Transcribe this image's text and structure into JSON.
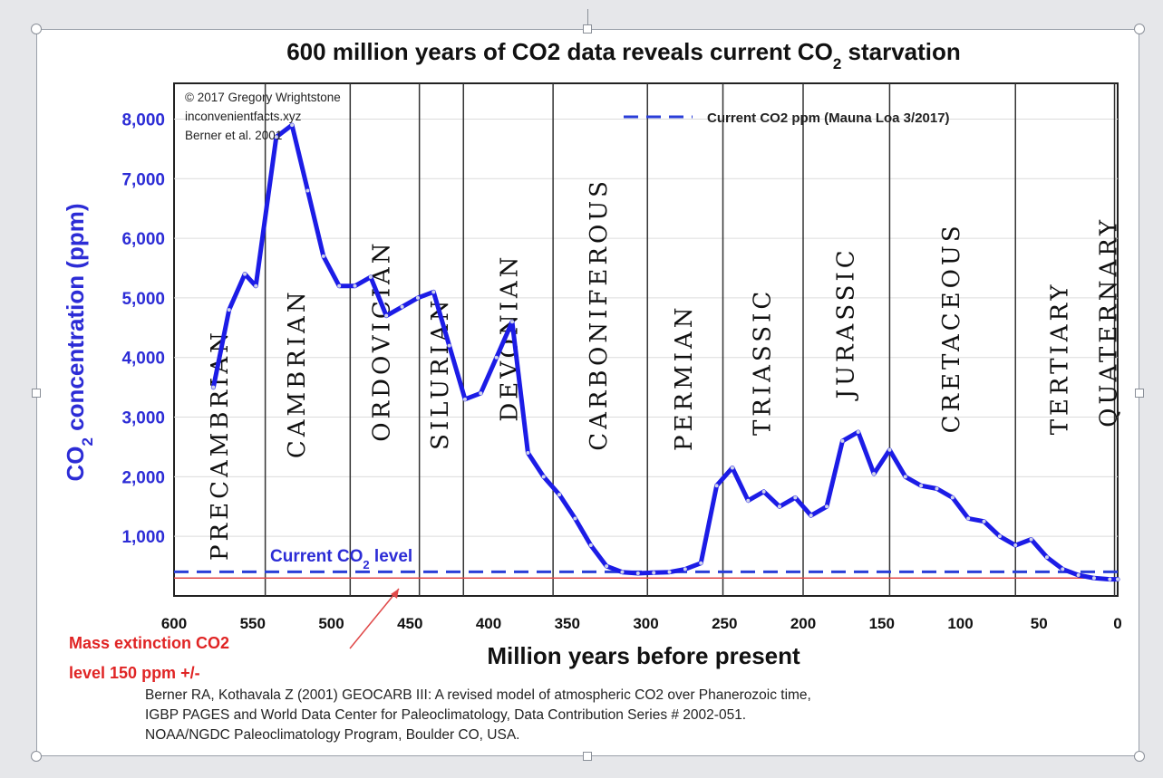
{
  "chart_data": {
    "type": "line",
    "title": "600 million years of CO2 data reveals current CO",
    "title_sub": "2",
    "title_end": " starvation",
    "source_lines": [
      "© 2017 Gregory Wrightstone",
      "inconvenientfacts.xyz",
      "Berner et al. 2001"
    ],
    "legend": {
      "label": "Current CO2 ppm (Mauna Loa 3/2017)",
      "placement": "top-right"
    },
    "ylabel": {
      "pre": "CO",
      "sub": "2",
      "post": " concentration (ppm)"
    },
    "xlabel": "Million years before present",
    "xlim": [
      600,
      0
    ],
    "ylim": [
      0,
      8600
    ],
    "x_ticks": [
      {
        "value": 600,
        "label": "600"
      },
      {
        "value": 550,
        "label": "550"
      },
      {
        "value": 500,
        "label": "500"
      },
      {
        "value": 450,
        "label": "450"
      },
      {
        "value": 400,
        "label": "400"
      },
      {
        "value": 350,
        "label": "350"
      },
      {
        "value": 300,
        "label": "300"
      },
      {
        "value": 250,
        "label": "250"
      },
      {
        "value": 200,
        "label": "200"
      },
      {
        "value": 150,
        "label": "150"
      },
      {
        "value": 100,
        "label": "100"
      },
      {
        "value": 50,
        "label": "50"
      },
      {
        "value": 0,
        "label": "0"
      }
    ],
    "y_ticks": [
      {
        "value": 1000,
        "label": "1,000"
      },
      {
        "value": 2000,
        "label": "2,000"
      },
      {
        "value": 3000,
        "label": "3,000"
      },
      {
        "value": 4000,
        "label": "4,000"
      },
      {
        "value": 5000,
        "label": "5,000"
      },
      {
        "value": 6000,
        "label": "6,000"
      },
      {
        "value": 7000,
        "label": "7,000"
      },
      {
        "value": 8000,
        "label": "8,000"
      }
    ],
    "period_boundaries": [
      542,
      488,
      444,
      416,
      359,
      299,
      251,
      200,
      145,
      65,
      2
    ],
    "periods": [
      {
        "name": "PRECAMBRIAN",
        "x": 570,
        "y_top": 4480
      },
      {
        "name": "CAMBRIAN",
        "x": 521,
        "y_top": 5160
      },
      {
        "name": "ORDOVICIAN",
        "x": 467,
        "y_top": 5980
      },
      {
        "name": "SILURIAN",
        "x": 430,
        "y_top": 5020
      },
      {
        "name": "DEVONIAN",
        "x": 386,
        "y_top": 5750
      },
      {
        "name": "CARBONIFEROUS",
        "x": 329,
        "y_top": 7020
      },
      {
        "name": "PERMIAN",
        "x": 275,
        "y_top": 4900
      },
      {
        "name": "TRIASSIC",
        "x": 225,
        "y_top": 5170
      },
      {
        "name": "JURASSIC",
        "x": 172,
        "y_top": 5860
      },
      {
        "name": "CRETACEOUS",
        "x": 105,
        "y_top": 6270
      },
      {
        "name": "TERTIARY",
        "x": 36,
        "y_top": 5280
      },
      {
        "name": "QUATERNARY",
        "x": 5,
        "y_top": 6370
      }
    ],
    "series": [
      {
        "x": [
          575,
          565,
          555,
          548,
          535,
          525,
          515,
          505,
          495,
          485,
          475,
          465,
          455,
          445,
          435,
          425,
          415,
          405,
          395,
          385,
          375,
          365,
          355,
          345,
          335,
          325,
          315,
          305,
          295,
          285,
          275,
          265,
          255,
          245,
          235,
          225,
          215,
          205,
          195,
          185,
          175,
          165,
          155,
          145,
          135,
          125,
          115,
          105,
          95,
          85,
          75,
          65,
          55,
          45,
          35,
          25,
          15,
          5,
          0
        ],
        "values": [
          3500,
          4800,
          5400,
          5200,
          7700,
          7900,
          6800,
          5700,
          5200,
          5200,
          5350,
          4700,
          4850,
          5000,
          5100,
          4200,
          3300,
          3400,
          4000,
          4600,
          2400,
          2000,
          1700,
          1300,
          850,
          500,
          400,
          380,
          390,
          400,
          450,
          550,
          1850,
          2150,
          1600,
          1750,
          1500,
          1650,
          1350,
          1500,
          2600,
          2750,
          2050,
          2450,
          2000,
          1850,
          1800,
          1650,
          1300,
          1250,
          1000,
          850,
          950,
          650,
          450,
          350,
          300,
          280,
          280
        ]
      }
    ],
    "current_co2_ppm": 405,
    "current_label_pre": "Current CO",
    "current_label_sub": "2",
    "current_label_post": " level",
    "mass_extinction_ppm": 150,
    "mass_extinction_lines": [
      "Mass extinction CO2",
      "level 150 ppm +/-"
    ],
    "citation_lines": [
      "Berner RA, Kothavala Z (2001) GEOCARB III: A revised model of atmospheric CO2 over Phanerozoic time,",
      "IGBP PAGES and World Data Center for Paleoclimatology, Data Contribution Series # 2002-051.",
      "NOAA/NGDC Paleoclimatology Program, Boulder CO, USA."
    ],
    "colors": {
      "series": "#1c1ce6",
      "current": "#2a3ed8",
      "extinction": "#e04848",
      "axis_text": "#2c2cd6"
    }
  }
}
